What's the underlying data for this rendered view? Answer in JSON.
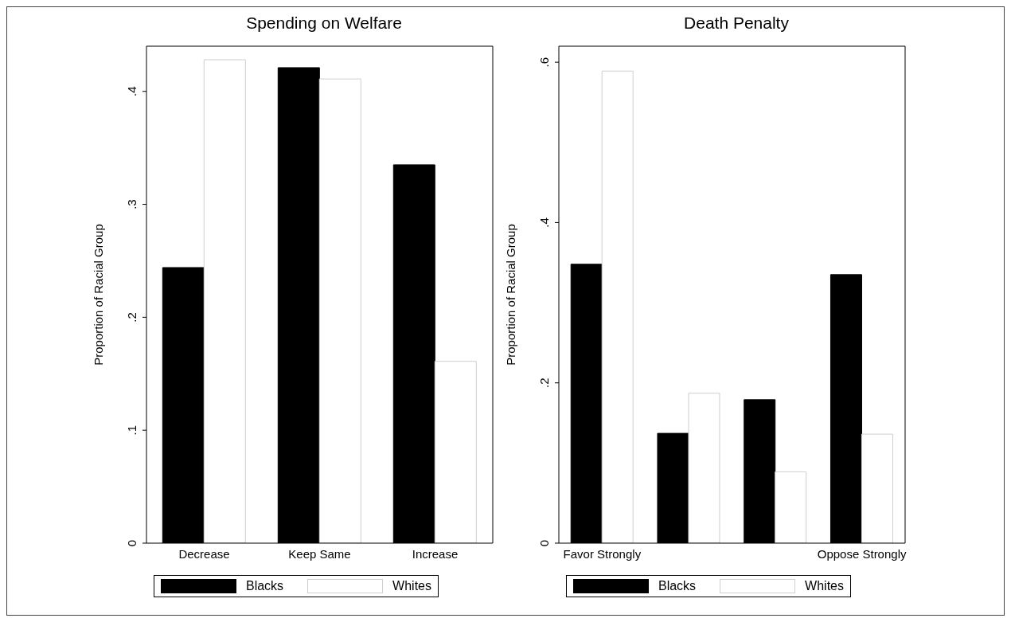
{
  "chart_data": [
    {
      "type": "bar",
      "title": "Spending on Welfare",
      "ylabel": "Proportion of Racial Group",
      "categories": [
        "Decrease",
        "Keep Same",
        "Increase"
      ],
      "series": [
        {
          "name": "Blacks",
          "color": "#000000",
          "values": [
            0.244,
            0.421,
            0.335
          ]
        },
        {
          "name": "Whites",
          "color": "#ffffff",
          "values": [
            0.428,
            0.411,
            0.161
          ]
        }
      ],
      "ylim": [
        0,
        0.44
      ],
      "yticks": [
        0,
        {
          "value": 0.1,
          "label": ".1"
        },
        {
          "value": 0.2,
          "label": ".2"
        },
        {
          "value": 0.3,
          "label": ".3"
        },
        {
          "value": 0.4,
          "label": ".4"
        }
      ],
      "grid": false,
      "legend": "bottom"
    },
    {
      "type": "bar",
      "title": "Death Penalty",
      "ylabel": "Proportion of Racial Group",
      "categories": [
        "Favor Strongly",
        null,
        null,
        "Oppose Strongly"
      ],
      "series": [
        {
          "name": "Blacks",
          "color": "#000000",
          "values": [
            0.348,
            0.137,
            0.179,
            0.335
          ]
        },
        {
          "name": "Whites",
          "color": "#ffffff",
          "values": [
            0.589,
            0.187,
            0.089,
            0.136
          ]
        }
      ],
      "ylim": [
        0,
        0.62
      ],
      "yticks": [
        0,
        {
          "value": 0.2,
          "label": ".2"
        },
        {
          "value": 0.4,
          "label": ".4"
        },
        {
          "value": 0.6,
          "label": ".6"
        }
      ],
      "grid": false,
      "legend": "bottom"
    }
  ]
}
